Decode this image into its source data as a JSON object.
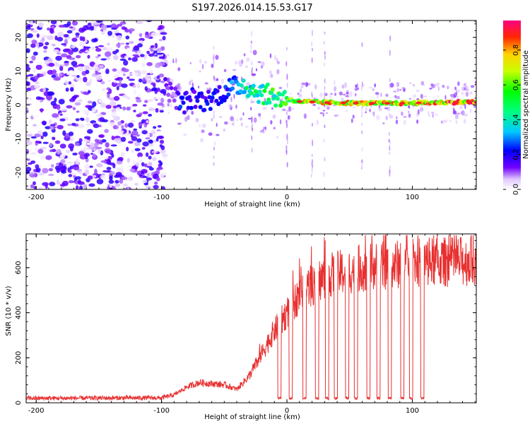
{
  "title": "S197.2026.014.15.53.G17",
  "chart_data": [
    {
      "type": "heatmap",
      "name": "spectrogram",
      "xlabel": "Height of straight line (km)",
      "ylabel": "Frequency (Hz)",
      "xlim": [
        -208,
        151
      ],
      "ylim": [
        -25,
        25
      ],
      "xticks": [
        -200,
        -100,
        0,
        100
      ],
      "yticks": [
        -20,
        -10,
        0,
        10,
        20
      ],
      "xtick_labels": [
        "-200",
        "-100",
        "0",
        "100"
      ],
      "ytick_labels": [
        "-20",
        "-10",
        "0",
        "10",
        "20"
      ],
      "colorbar": {
        "label": "Normalized spectral amplitude",
        "range": [
          0,
          0.97
        ],
        "ticks": [
          0.0,
          0.2,
          0.4,
          0.6,
          0.8
        ],
        "tick_labels": [
          "0.0",
          "0.2",
          "0.4",
          "0.6",
          "0.8"
        ]
      },
      "noise_region": {
        "x_range": [
          -208,
          -97
        ],
        "y_range": [
          -25,
          25
        ],
        "max_amplitude": 0.2
      },
      "ridge": [
        {
          "x": -97,
          "y": 5,
          "amp": 0.15
        },
        {
          "x": -90,
          "y": 3,
          "amp": 0.12
        },
        {
          "x": -85,
          "y": 0,
          "amp": 0.25
        },
        {
          "x": -75,
          "y": 2,
          "amp": 0.2
        },
        {
          "x": -65,
          "y": 1,
          "amp": 0.22
        },
        {
          "x": -55,
          "y": 3,
          "amp": 0.25
        },
        {
          "x": -45,
          "y": 5,
          "amp": 0.3
        },
        {
          "x": -35,
          "y": 6,
          "amp": 0.45
        },
        {
          "x": -25,
          "y": 4,
          "amp": 0.5
        },
        {
          "x": -15,
          "y": 3,
          "amp": 0.55
        },
        {
          "x": -5,
          "y": 2,
          "amp": 0.6
        },
        {
          "x": 10,
          "y": 1,
          "amp": 0.75
        },
        {
          "x": 30,
          "y": 0.7,
          "amp": 0.8
        },
        {
          "x": 60,
          "y": 0.5,
          "amp": 0.82
        },
        {
          "x": 90,
          "y": 0.5,
          "amp": 0.85
        },
        {
          "x": 120,
          "y": 0.7,
          "amp": 0.9
        },
        {
          "x": 151,
          "y": 0.9,
          "amp": 0.95
        }
      ]
    },
    {
      "type": "line",
      "name": "snr",
      "xlabel": "Height of straight line (km)",
      "ylabel": "SNR (10 * v/v)",
      "xlim": [
        -208,
        151
      ],
      "ylim": [
        0,
        750
      ],
      "xticks": [
        -200,
        -100,
        0,
        100
      ],
      "yticks": [
        0,
        200,
        400,
        600
      ],
      "xtick_labels": [
        "-200",
        "-100",
        "0",
        "100"
      ],
      "ytick_labels": [
        "0",
        "200",
        "400",
        "600"
      ],
      "color": "#e83030",
      "envelope": [
        {
          "x": -208,
          "y": 20
        },
        {
          "x": -100,
          "y": 22
        },
        {
          "x": -90,
          "y": 35
        },
        {
          "x": -80,
          "y": 70
        },
        {
          "x": -70,
          "y": 90
        },
        {
          "x": -50,
          "y": 80
        },
        {
          "x": -40,
          "y": 60
        },
        {
          "x": -30,
          "y": 120
        },
        {
          "x": -20,
          "y": 220
        },
        {
          "x": -10,
          "y": 320
        },
        {
          "x": 0,
          "y": 400
        },
        {
          "x": 10,
          "y": 480
        },
        {
          "x": 30,
          "y": 560
        },
        {
          "x": 60,
          "y": 600
        },
        {
          "x": 100,
          "y": 620
        },
        {
          "x": 151,
          "y": 630
        }
      ],
      "dropouts": [
        -6,
        3,
        14,
        24,
        32,
        39,
        48,
        55,
        65,
        73,
        82,
        92,
        99,
        108
      ],
      "dropout_level": 20
    }
  ]
}
